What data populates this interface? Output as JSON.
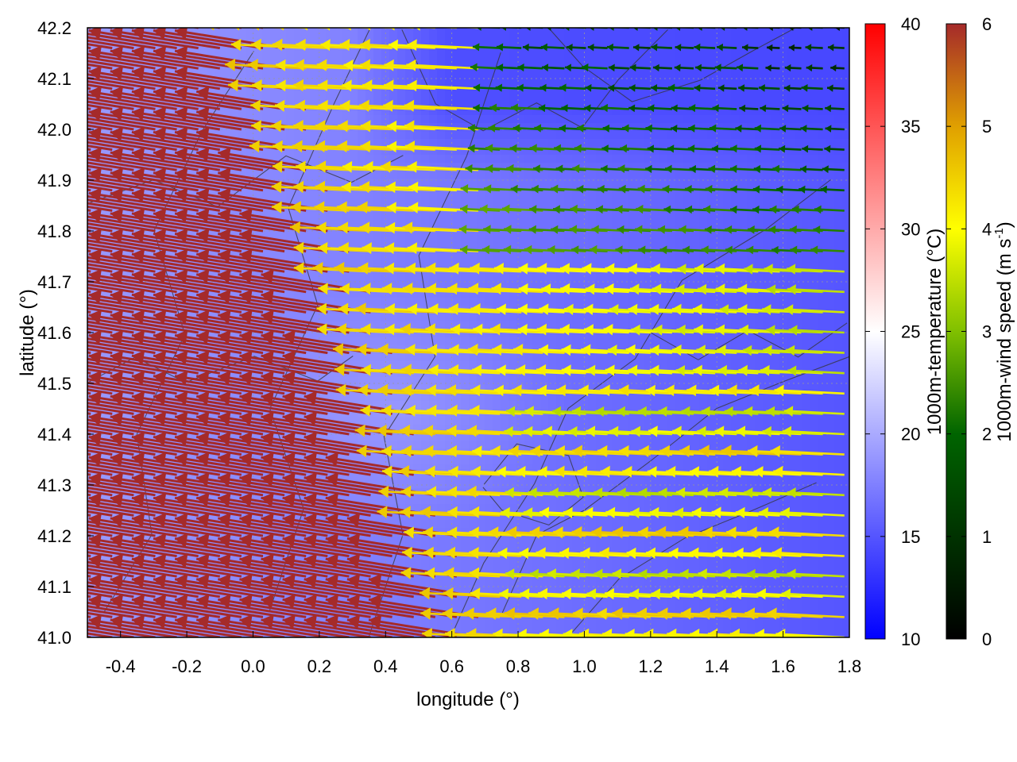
{
  "chart_data": {
    "type": "heatmap",
    "subtype": "wind vector field over temperature map with contour lines",
    "xlabel": "longitude (°)",
    "ylabel": "latitude (°)",
    "xlim": [
      -0.5,
      1.8
    ],
    "ylim": [
      41.0,
      42.2
    ],
    "x_ticks": [
      "-0.4",
      "-0.2",
      "0.0",
      "0.2",
      "0.4",
      "0.6",
      "0.8",
      "1.0",
      "1.2",
      "1.4",
      "1.6",
      "1.8"
    ],
    "y_ticks": [
      "41.0",
      "41.1",
      "41.2",
      "41.3",
      "41.4",
      "41.5",
      "41.6",
      "41.7",
      "41.8",
      "41.9",
      "42.0",
      "42.1",
      "42.2"
    ],
    "grid": true,
    "colorbars": [
      {
        "label": "1000m-temperature (°C)",
        "min": 10,
        "max": 40,
        "ticks": [
          "10",
          "15",
          "20",
          "25",
          "30",
          "35",
          "40"
        ],
        "colors": [
          "#0000ff",
          "#ffffff",
          "#ff0000"
        ]
      },
      {
        "label_main": "1000m-wind speed (m s",
        "label_sup": "-1",
        "label_end": ")",
        "min": 0,
        "max": 6,
        "ticks": [
          "0",
          "1",
          "2",
          "3",
          "4",
          "5",
          "6"
        ],
        "colors": [
          "#000000",
          "#006400",
          "#80c000",
          "#ffff00",
          "#e0a000",
          "#a52a2a"
        ]
      }
    ],
    "temperature_field": {
      "description": "1000 m temperature, mostly 15–20 °C",
      "west_lon_value": 19,
      "east_lon_value": 15,
      "coldest_region": {
        "lon": [
          0.3,
          1.6
        ],
        "lat": [
          41.9,
          42.2
        ],
        "value": 14
      }
    },
    "wind_field": {
      "direction": "mostly from east to west (westward vectors)",
      "speed_by_region": [
        {
          "region": "south-west (lon -0.5..0.5, lat 41.0..42.2)",
          "speed": 6
        },
        {
          "region": "central band (lon 0.5..1.2)",
          "speed": 4
        },
        {
          "region": "south-east (lon 1.0..1.8, lat 41.0..41.6)",
          "speed": 3.8
        },
        {
          "region": "north-east (lon 1.0..1.8, lat 41.8..42.2)",
          "speed": 1.5
        }
      ]
    }
  }
}
